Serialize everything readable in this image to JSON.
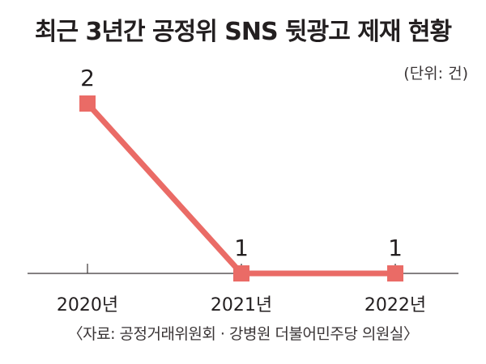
{
  "chart_data": {
    "type": "line",
    "title": "최근 3년간 공정위 SNS 뒷광고 제재 현황",
    "unit_label": "(단위: 건)",
    "categories": [
      "2020년",
      "2021년",
      "2022년"
    ],
    "series": [
      {
        "values": [
          2,
          1,
          1
        ]
      }
    ],
    "data_labels": [
      "2",
      "1",
      "1"
    ],
    "ylim": [
      1,
      2
    ],
    "grid": false,
    "legend": "none",
    "source": "〈자료: 공정거래위원회 · 강병원 더불어민주당 의원실〉",
    "colors": {
      "line": "#ea6b66",
      "axis": "#3a3536",
      "text": "#231f20"
    }
  }
}
